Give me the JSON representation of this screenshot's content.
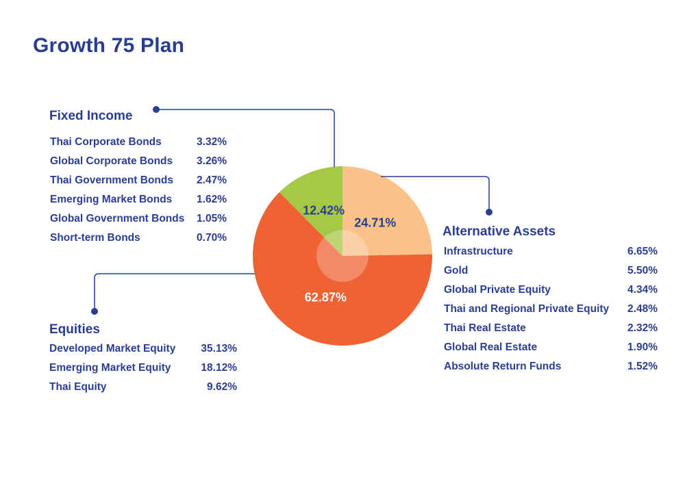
{
  "title": "Growth 75 Plan",
  "colors": {
    "text": "#2a3d91",
    "equities": "#ef6234",
    "fixed_income": "#a5c847",
    "alternative_assets": "#f9c288",
    "center_highlight": "#ffffff"
  },
  "fixed_income": {
    "heading": "Fixed Income",
    "items": [
      {
        "name": "Thai Corporate Bonds",
        "value": "3.32%"
      },
      {
        "name": "Global Corporate Bonds",
        "value": "3.26%"
      },
      {
        "name": "Thai Government Bonds",
        "value": "2.47%"
      },
      {
        "name": "Emerging Market Bonds",
        "value": "1.62%"
      },
      {
        "name": "Global Government Bonds",
        "value": "1.05%"
      },
      {
        "name": "Short-term Bonds",
        "value": "0.70%"
      }
    ]
  },
  "equities": {
    "heading": "Equities",
    "items": [
      {
        "name": "Developed Market Equity",
        "value": "35.13%"
      },
      {
        "name": "Emerging Market Equity",
        "value": "18.12%"
      },
      {
        "name": "Thai Equity",
        "value": "9.62%"
      }
    ]
  },
  "alternative_assets": {
    "heading": "Alternative Assets",
    "items": [
      {
        "name": "Infrastructure",
        "value": "6.65%"
      },
      {
        "name": "Gold",
        "value": "5.50%"
      },
      {
        "name": "Global Private Equity",
        "value": "4.34%"
      },
      {
        "name": "Thai and Regional Private Equity",
        "value": "2.48%"
      },
      {
        "name": "Thai Real Estate",
        "value": "2.32%"
      },
      {
        "name": "Global Real Estate",
        "value": "1.90%"
      },
      {
        "name": "Absolute Return Funds",
        "value": "1.52%"
      }
    ]
  },
  "chart_data": {
    "type": "pie",
    "title": "Growth 75 Plan",
    "start": "12 o'clock",
    "direction": "clockwise",
    "slices": [
      {
        "name": "Alternative Assets",
        "value": 24.71,
        "label": "24.71%",
        "color": "#f9c288"
      },
      {
        "name": "Equities",
        "value": 62.87,
        "label": "62.87%",
        "color": "#ef6234"
      },
      {
        "name": "Fixed Income",
        "value": 12.42,
        "label": "12.42%",
        "color": "#a5c847"
      }
    ]
  }
}
